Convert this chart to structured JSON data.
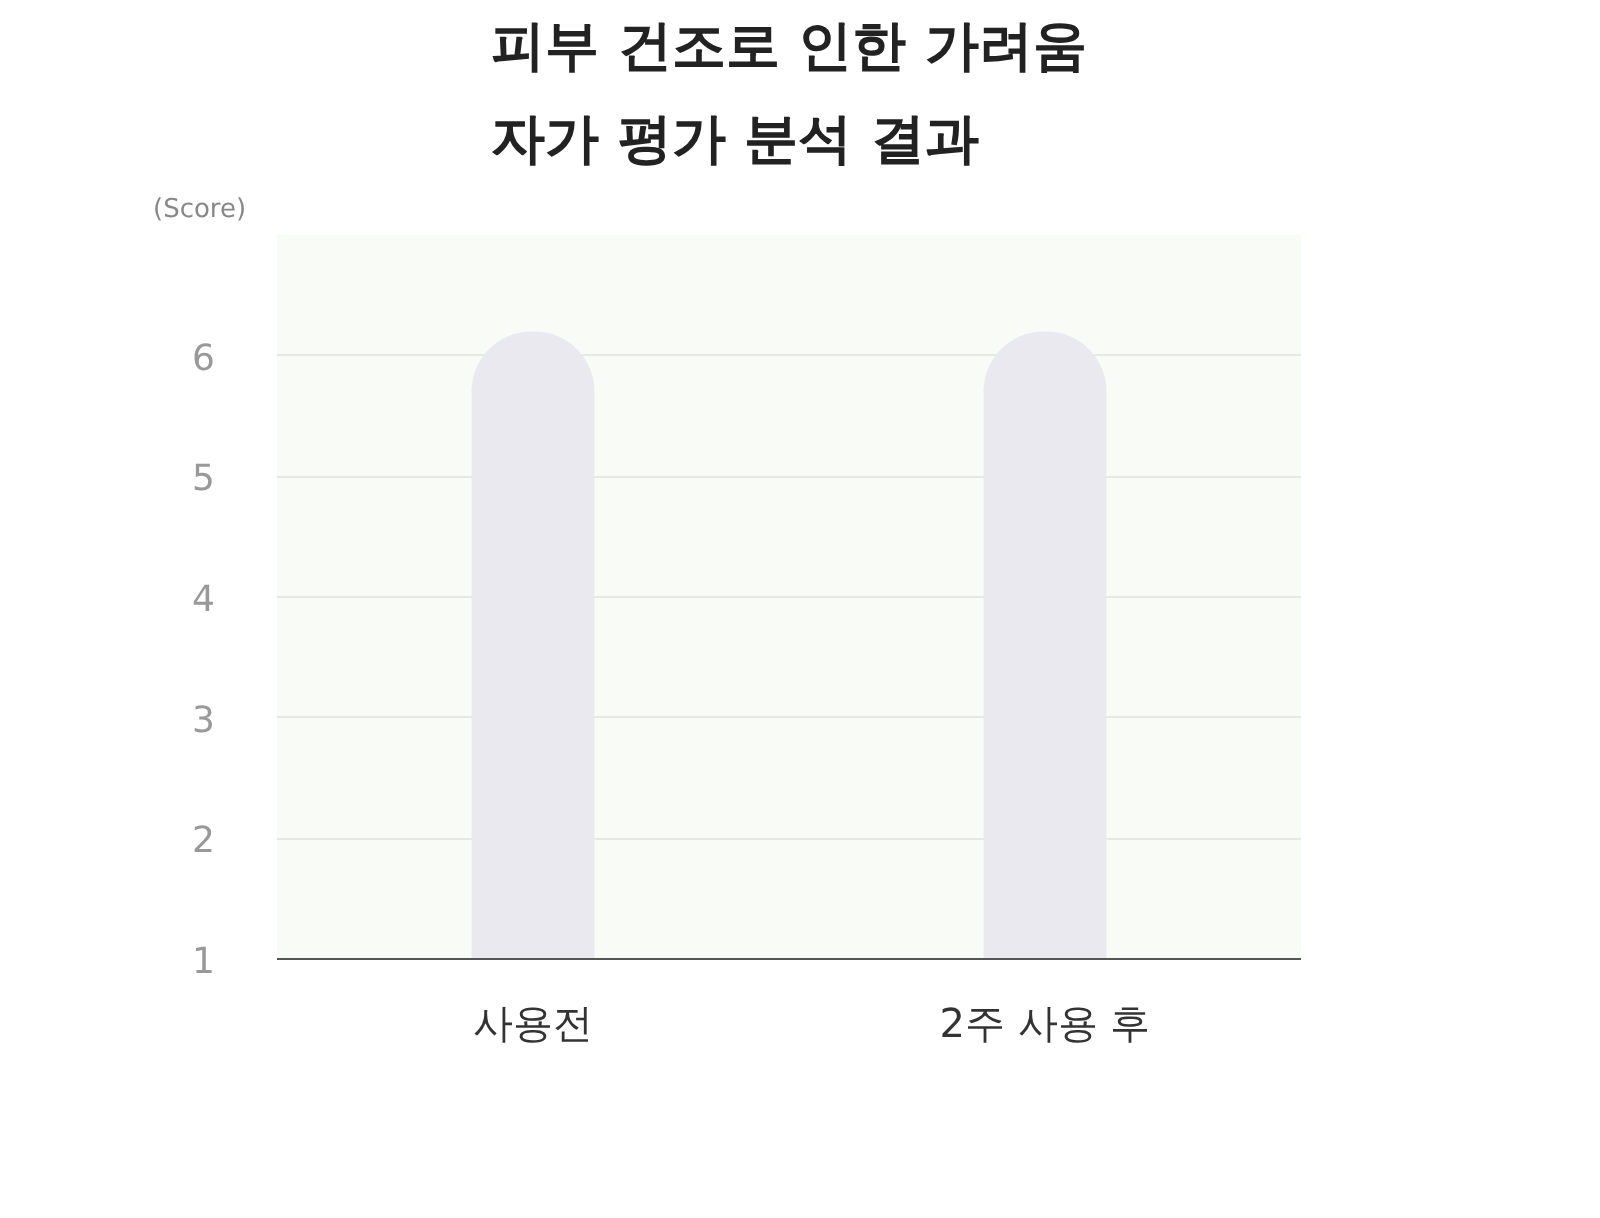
{
  "chart_data": {
    "type": "bar",
    "title": "피부 건조로 인한 가려움\n자가 평가 분석 결과",
    "ylabel": "(Score)",
    "categories": [
      "사용전",
      "2주 사용 후"
    ],
    "values": [
      6.2,
      6.2
    ],
    "color": "#e9e9ef",
    "ylim": [
      1,
      7
    ],
    "yticks": [
      1,
      2,
      3,
      4,
      5,
      6
    ],
    "grid": "y"
  }
}
